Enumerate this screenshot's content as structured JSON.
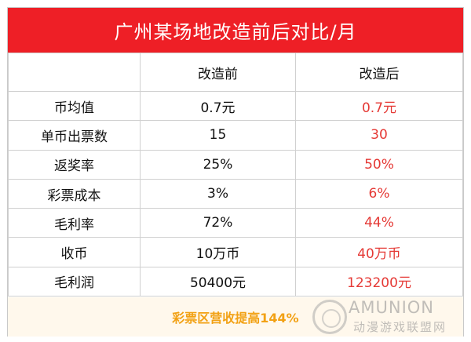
{
  "title": "广州某场地改造前后对比/月",
  "columns": [
    "",
    "改造前",
    "改造后"
  ],
  "rows": [
    {
      "label": "币均值",
      "before": "0.7元",
      "after": "0.7元"
    },
    {
      "label": "单币出票数",
      "before": "15",
      "after": "30"
    },
    {
      "label": "返奖率",
      "before": "25%",
      "after": "50%"
    },
    {
      "label": "彩票成本",
      "before": "3%",
      "after": "6%"
    },
    {
      "label": "毛利率",
      "before": "72%",
      "after": "44%"
    },
    {
      "label": "收币",
      "before": "10万币",
      "after": "40万币"
    },
    {
      "label": "毛利润",
      "before": "50400元",
      "after": "123200元"
    }
  ],
  "footer": "彩票区营收提高144%",
  "watermark": {
    "text": "AMUNION",
    "subtext": "动漫游戏联盟网"
  },
  "colors": {
    "title_bg": "#ee1f26",
    "after_text": "#e53935",
    "footer_text": "#f2a114"
  }
}
